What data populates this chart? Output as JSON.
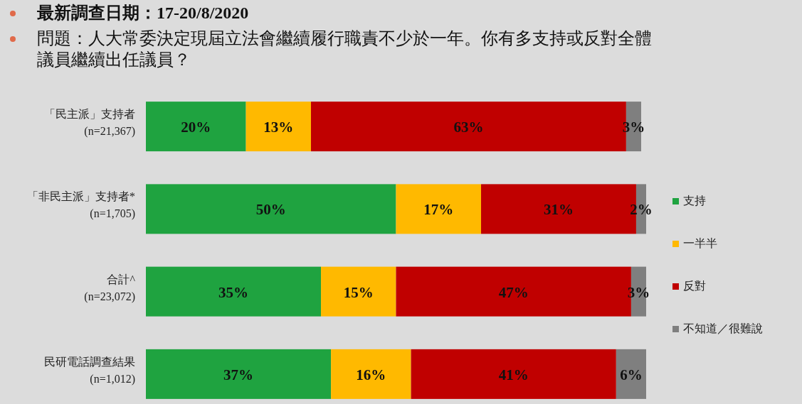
{
  "chart_data": {
    "type": "bar",
    "orientation": "horizontal",
    "stacked": true,
    "legend": "right",
    "title": "最新調查日期：17-20/8/2020",
    "subtitle": "問題：人大常委決定現屆立法會繼續履行職責不少於一年。你有多支持或反對全體議員繼續出任議員？",
    "categories": [
      "「民主派」支持者\n(n=21,367)",
      "「非民主派」支持者*\n(n=1,705)",
      "合計^\n(n=23,072)",
      "民研電話調查結果\n(n=1,012)"
    ],
    "series": [
      {
        "name": "支持",
        "color": "#1fa340",
        "values": [
          20,
          50,
          35,
          37
        ],
        "value_labels": [
          "20%",
          "50%",
          "35%",
          "37%"
        ]
      },
      {
        "name": "一半半",
        "color": "#ffb900",
        "values": [
          13,
          17,
          15,
          16
        ],
        "value_labels": [
          "13%",
          "17%",
          "15%",
          "16%"
        ]
      },
      {
        "name": "反對",
        "color": "#c00000",
        "values": [
          63,
          31,
          47,
          41
        ],
        "value_labels": [
          "63%",
          "31%",
          "47%",
          "41%"
        ]
      },
      {
        "name": "不知道／很難說",
        "color": "#7f7f7f",
        "values": [
          3,
          2,
          3,
          6
        ],
        "value_labels": [
          "3%",
          "2%",
          "3%",
          "6%"
        ]
      }
    ]
  }
}
